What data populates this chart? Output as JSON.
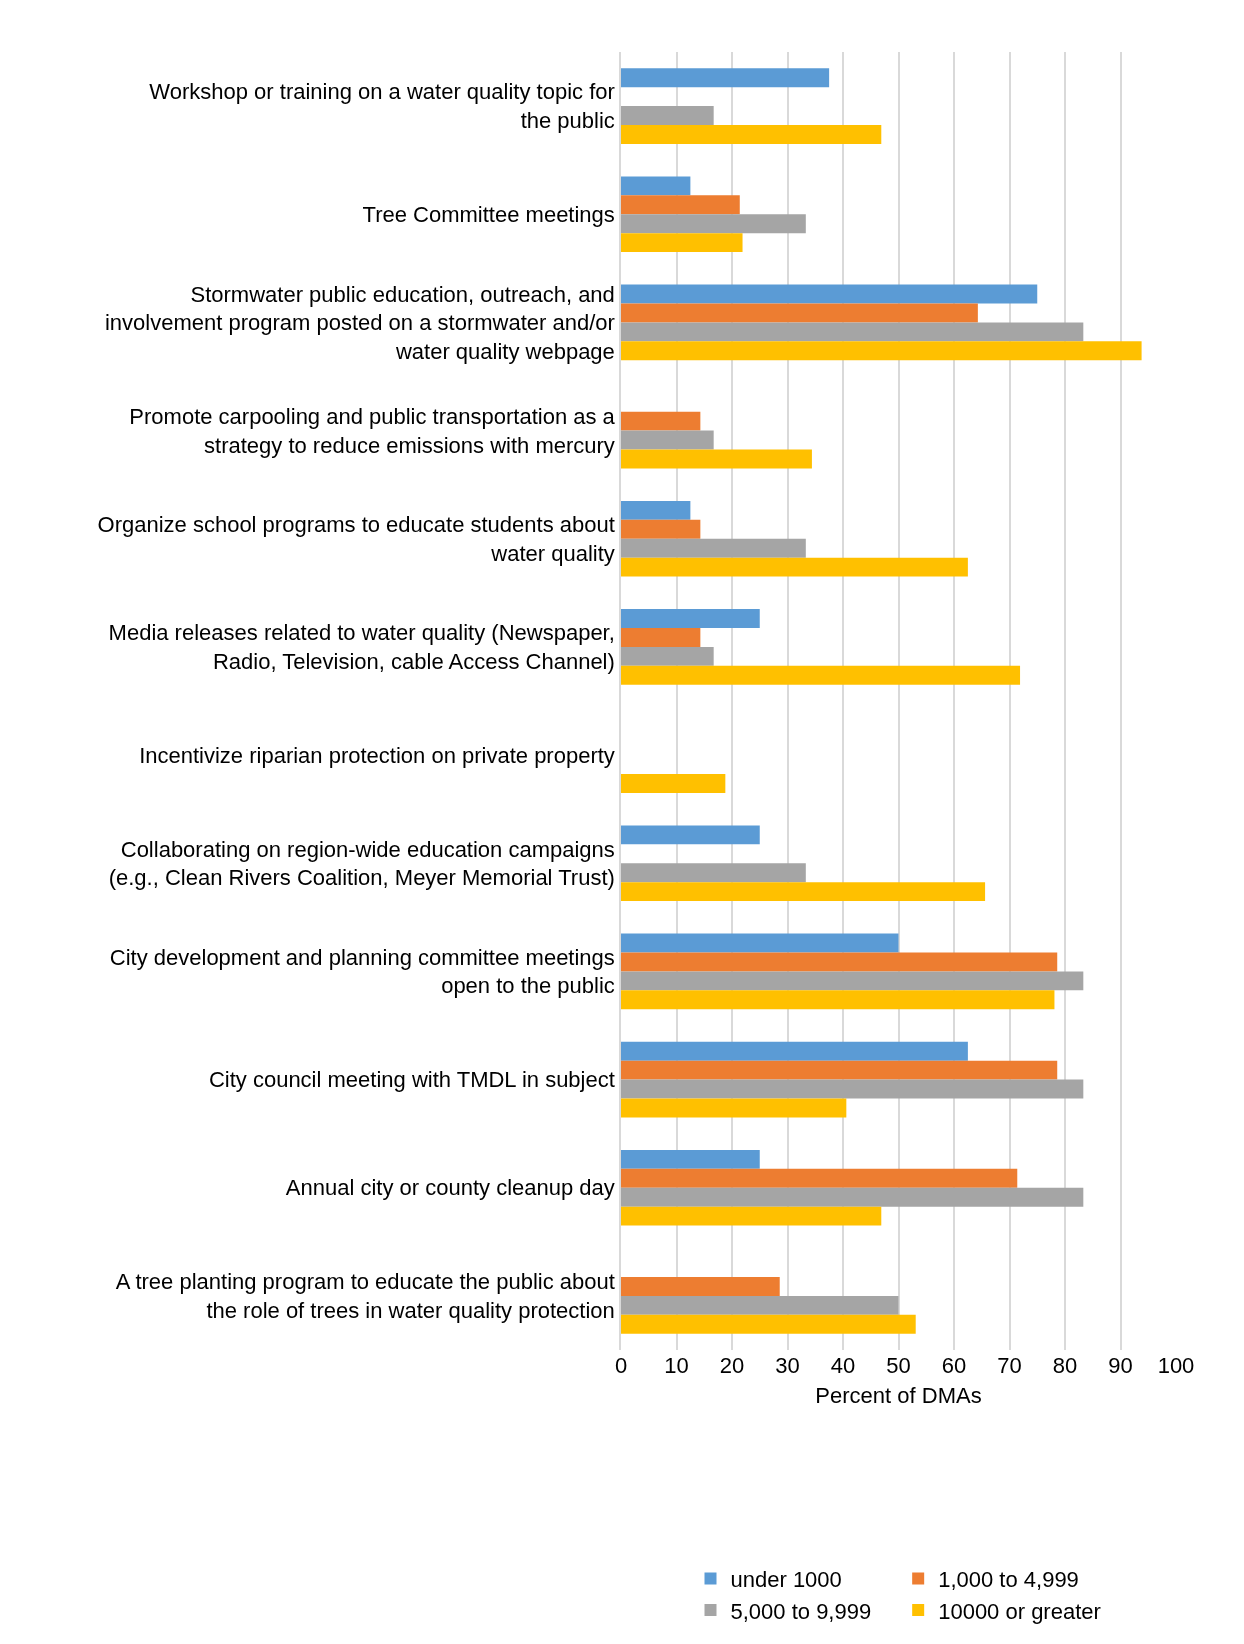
{
  "chart_data": {
    "type": "bar",
    "orientation": "horizontal",
    "xlabel": "Percent of DMAs",
    "categories": [
      "Workshop or training on a water quality topic for the public",
      "Tree Committee meetings",
      "Stormwater public education, outreach, and involvement program posted on a stormwater and/or water quality webpage",
      "Promote carpooling and public transportation as a strategy to reduce emissions with mercury",
      "Organize school programs to educate students about water quality",
      "Media releases related to water quality (Newspaper, Radio, Television, cable Access Channel)",
      "Incentivize riparian protection on private property",
      "Collaborating on region-wide education campaigns (e.g., Clean Rivers Coalition, Meyer Memorial Trust)",
      "City development and planning committee meetings open to the public",
      "City council meeting with TMDL in subject",
      "Annual city or county cleanup day",
      "A tree planting program to educate the public about the role of trees in water quality protection"
    ],
    "series": [
      {
        "name": "under 1000",
        "color": "#5b9bd5",
        "values": [
          37.5,
          12.5,
          75,
          0,
          12.5,
          25,
          0,
          25,
          50,
          62.5,
          25,
          0
        ]
      },
      {
        "name": "1,000 to 4,999",
        "color": "#ed7d31",
        "values": [
          0,
          21.4,
          64.3,
          14.3,
          14.3,
          14.3,
          0,
          0,
          78.6,
          78.6,
          71.4,
          28.6
        ]
      },
      {
        "name": "5,000 to 9,999",
        "color": "#a5a5a5",
        "values": [
          16.7,
          33.3,
          83.3,
          16.7,
          33.3,
          16.7,
          0,
          33.3,
          83.3,
          83.3,
          83.3,
          50
        ]
      },
      {
        "name": "10000 or greater",
        "color": "#ffc000",
        "values": [
          46.9,
          21.9,
          93.8,
          34.4,
          62.5,
          71.9,
          18.8,
          65.6,
          78.1,
          40.6,
          46.9,
          53.1
        ]
      }
    ],
    "xlim": [
      0,
      100
    ],
    "xticks": [
      0,
      10,
      20,
      30,
      40,
      50,
      60,
      70,
      80,
      90,
      100
    ],
    "grid": "x",
    "legend": "bottom"
  }
}
